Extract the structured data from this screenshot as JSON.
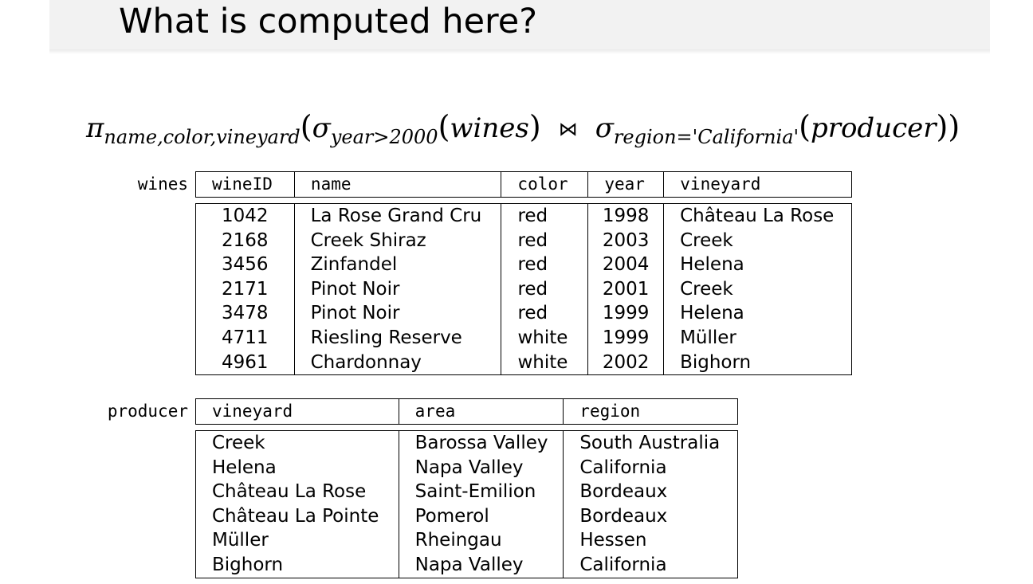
{
  "slide": {
    "title": "What is computed here?"
  },
  "formula": {
    "pi": "π",
    "pi_sub": "name,color,vineyard",
    "sigma1": "σ",
    "sigma1_sub": "year>2000",
    "sigma1_arg": "wines",
    "join": "⋈",
    "sigma2": "σ",
    "sigma2_sub": "region='California'",
    "sigma2_arg": "producer"
  },
  "wines": {
    "label": "wines",
    "columns": [
      "wineID",
      "name",
      "color",
      "year",
      "vineyard"
    ],
    "rows": [
      [
        "1042",
        "La Rose Grand Cru",
        "red",
        "1998",
        "Château La Rose"
      ],
      [
        "2168",
        "Creek Shiraz",
        "red",
        "2003",
        "Creek"
      ],
      [
        "3456",
        "Zinfandel",
        "red",
        "2004",
        "Helena"
      ],
      [
        "2171",
        "Pinot Noir",
        "red",
        "2001",
        "Creek"
      ],
      [
        "3478",
        "Pinot Noir",
        "red",
        "1999",
        "Helena"
      ],
      [
        "4711",
        "Riesling Reserve",
        "white",
        "1999",
        "Müller"
      ],
      [
        "4961",
        "Chardonnay",
        "white",
        "2002",
        "Bighorn"
      ]
    ]
  },
  "producer": {
    "label": "producer",
    "columns": [
      "vineyard",
      "area",
      "region"
    ],
    "rows": [
      [
        "Creek",
        "Barossa Valley",
        "South Australia"
      ],
      [
        "Helena",
        "Napa Valley",
        "California"
      ],
      [
        "Château La Rose",
        "Saint-Emilion",
        "Bordeaux"
      ],
      [
        "Château La Pointe",
        "Pomerol",
        "Bordeaux"
      ],
      [
        "Müller",
        "Rheingau",
        "Hessen"
      ],
      [
        "Bighorn",
        "Napa Valley",
        "California"
      ]
    ]
  }
}
